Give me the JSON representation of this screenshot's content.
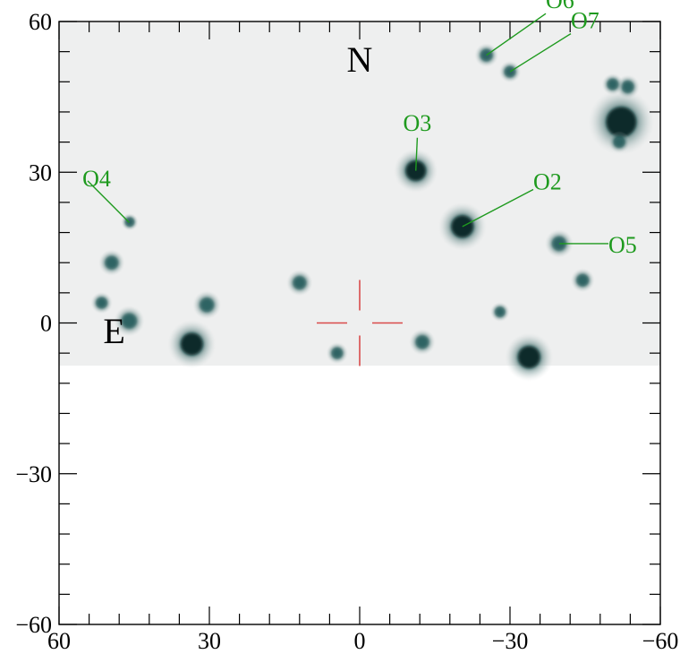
{
  "figure": {
    "x_ticks": [
      {
        "value": 60,
        "label": "60"
      },
      {
        "value": 30,
        "label": "30"
      },
      {
        "value": 0,
        "label": "0"
      },
      {
        "value": -30,
        "label": "−30"
      },
      {
        "value": -60,
        "label": "−60"
      }
    ],
    "y_ticks": [
      {
        "value": 60,
        "label": "60"
      },
      {
        "value": 30,
        "label": "30"
      },
      {
        "value": 0,
        "label": "0"
      },
      {
        "value": -30,
        "label": "−30"
      },
      {
        "value": -60,
        "label": "−60"
      }
    ],
    "x_range": [
      60,
      -60
    ],
    "y_range": [
      -60,
      60
    ],
    "minor_tick_step": 6,
    "image_bottom_edge": -8.5,
    "compass": {
      "north": "N",
      "east": "E"
    },
    "crosshair": {
      "x": 0,
      "y": 0,
      "color": "#d94a4a"
    },
    "label_color": "#1e9a1e",
    "objects": [
      {
        "id": "O2",
        "label": "O2",
        "x": -20.5,
        "y": 19.2,
        "label_x": -35,
        "label_y": 28
      },
      {
        "id": "O3",
        "label": "O3",
        "x": -11.2,
        "y": 30.3,
        "label_x": -11.5,
        "label_y": 39
      },
      {
        "id": "O4",
        "label": "O4",
        "x": 46.0,
        "y": 20.0,
        "label_x": 55,
        "label_y": 29
      },
      {
        "id": "O5",
        "label": "O5",
        "x": -39.8,
        "y": 15.8,
        "label_x": -52.5,
        "label_y": 15.8
      },
      {
        "id": "O6",
        "label": "O6",
        "x": -25.3,
        "y": 53.3,
        "label_x": -37.5,
        "label_y": 63
      },
      {
        "id": "O7",
        "label": "O7",
        "x": -30.0,
        "y": 50.0,
        "label_x": -42.5,
        "label_y": 59
      }
    ],
    "field_sources": [
      {
        "x": -20.5,
        "y": 19.2,
        "r": 2.2
      },
      {
        "x": -11.2,
        "y": 30.3,
        "r": 2.0
      },
      {
        "x": 33.5,
        "y": -4.2,
        "r": 2.2
      },
      {
        "x": -52.2,
        "y": 40.0,
        "r": 3.0
      },
      {
        "x": -33.8,
        "y": -6.8,
        "r": 2.2
      },
      {
        "x": -39.8,
        "y": 15.8,
        "r": 1.3
      },
      {
        "x": 46.0,
        "y": 0.4,
        "r": 1.4
      },
      {
        "x": 30.5,
        "y": 3.6,
        "r": 1.3
      },
      {
        "x": 12.0,
        "y": 8.0,
        "r": 1.2
      },
      {
        "x": -12.5,
        "y": -3.8,
        "r": 1.2
      },
      {
        "x": 49.5,
        "y": 12.0,
        "r": 1.2
      },
      {
        "x": -25.3,
        "y": 53.3,
        "r": 1.1
      },
      {
        "x": -30.0,
        "y": 50.0,
        "r": 1.0
      },
      {
        "x": -53.5,
        "y": 47.0,
        "r": 1.1
      },
      {
        "x": -50.5,
        "y": 47.5,
        "r": 1.0
      },
      {
        "x": -44.5,
        "y": 8.5,
        "r": 1.1
      },
      {
        "x": 4.5,
        "y": -6.0,
        "r": 1.0
      },
      {
        "x": -28.0,
        "y": 2.2,
        "r": 0.9
      },
      {
        "x": 51.5,
        "y": 4.0,
        "r": 1.0
      },
      {
        "x": -51.8,
        "y": 36.0,
        "r": 1.0
      },
      {
        "x": 45.9,
        "y": 20.1,
        "r": 0.8
      }
    ]
  }
}
